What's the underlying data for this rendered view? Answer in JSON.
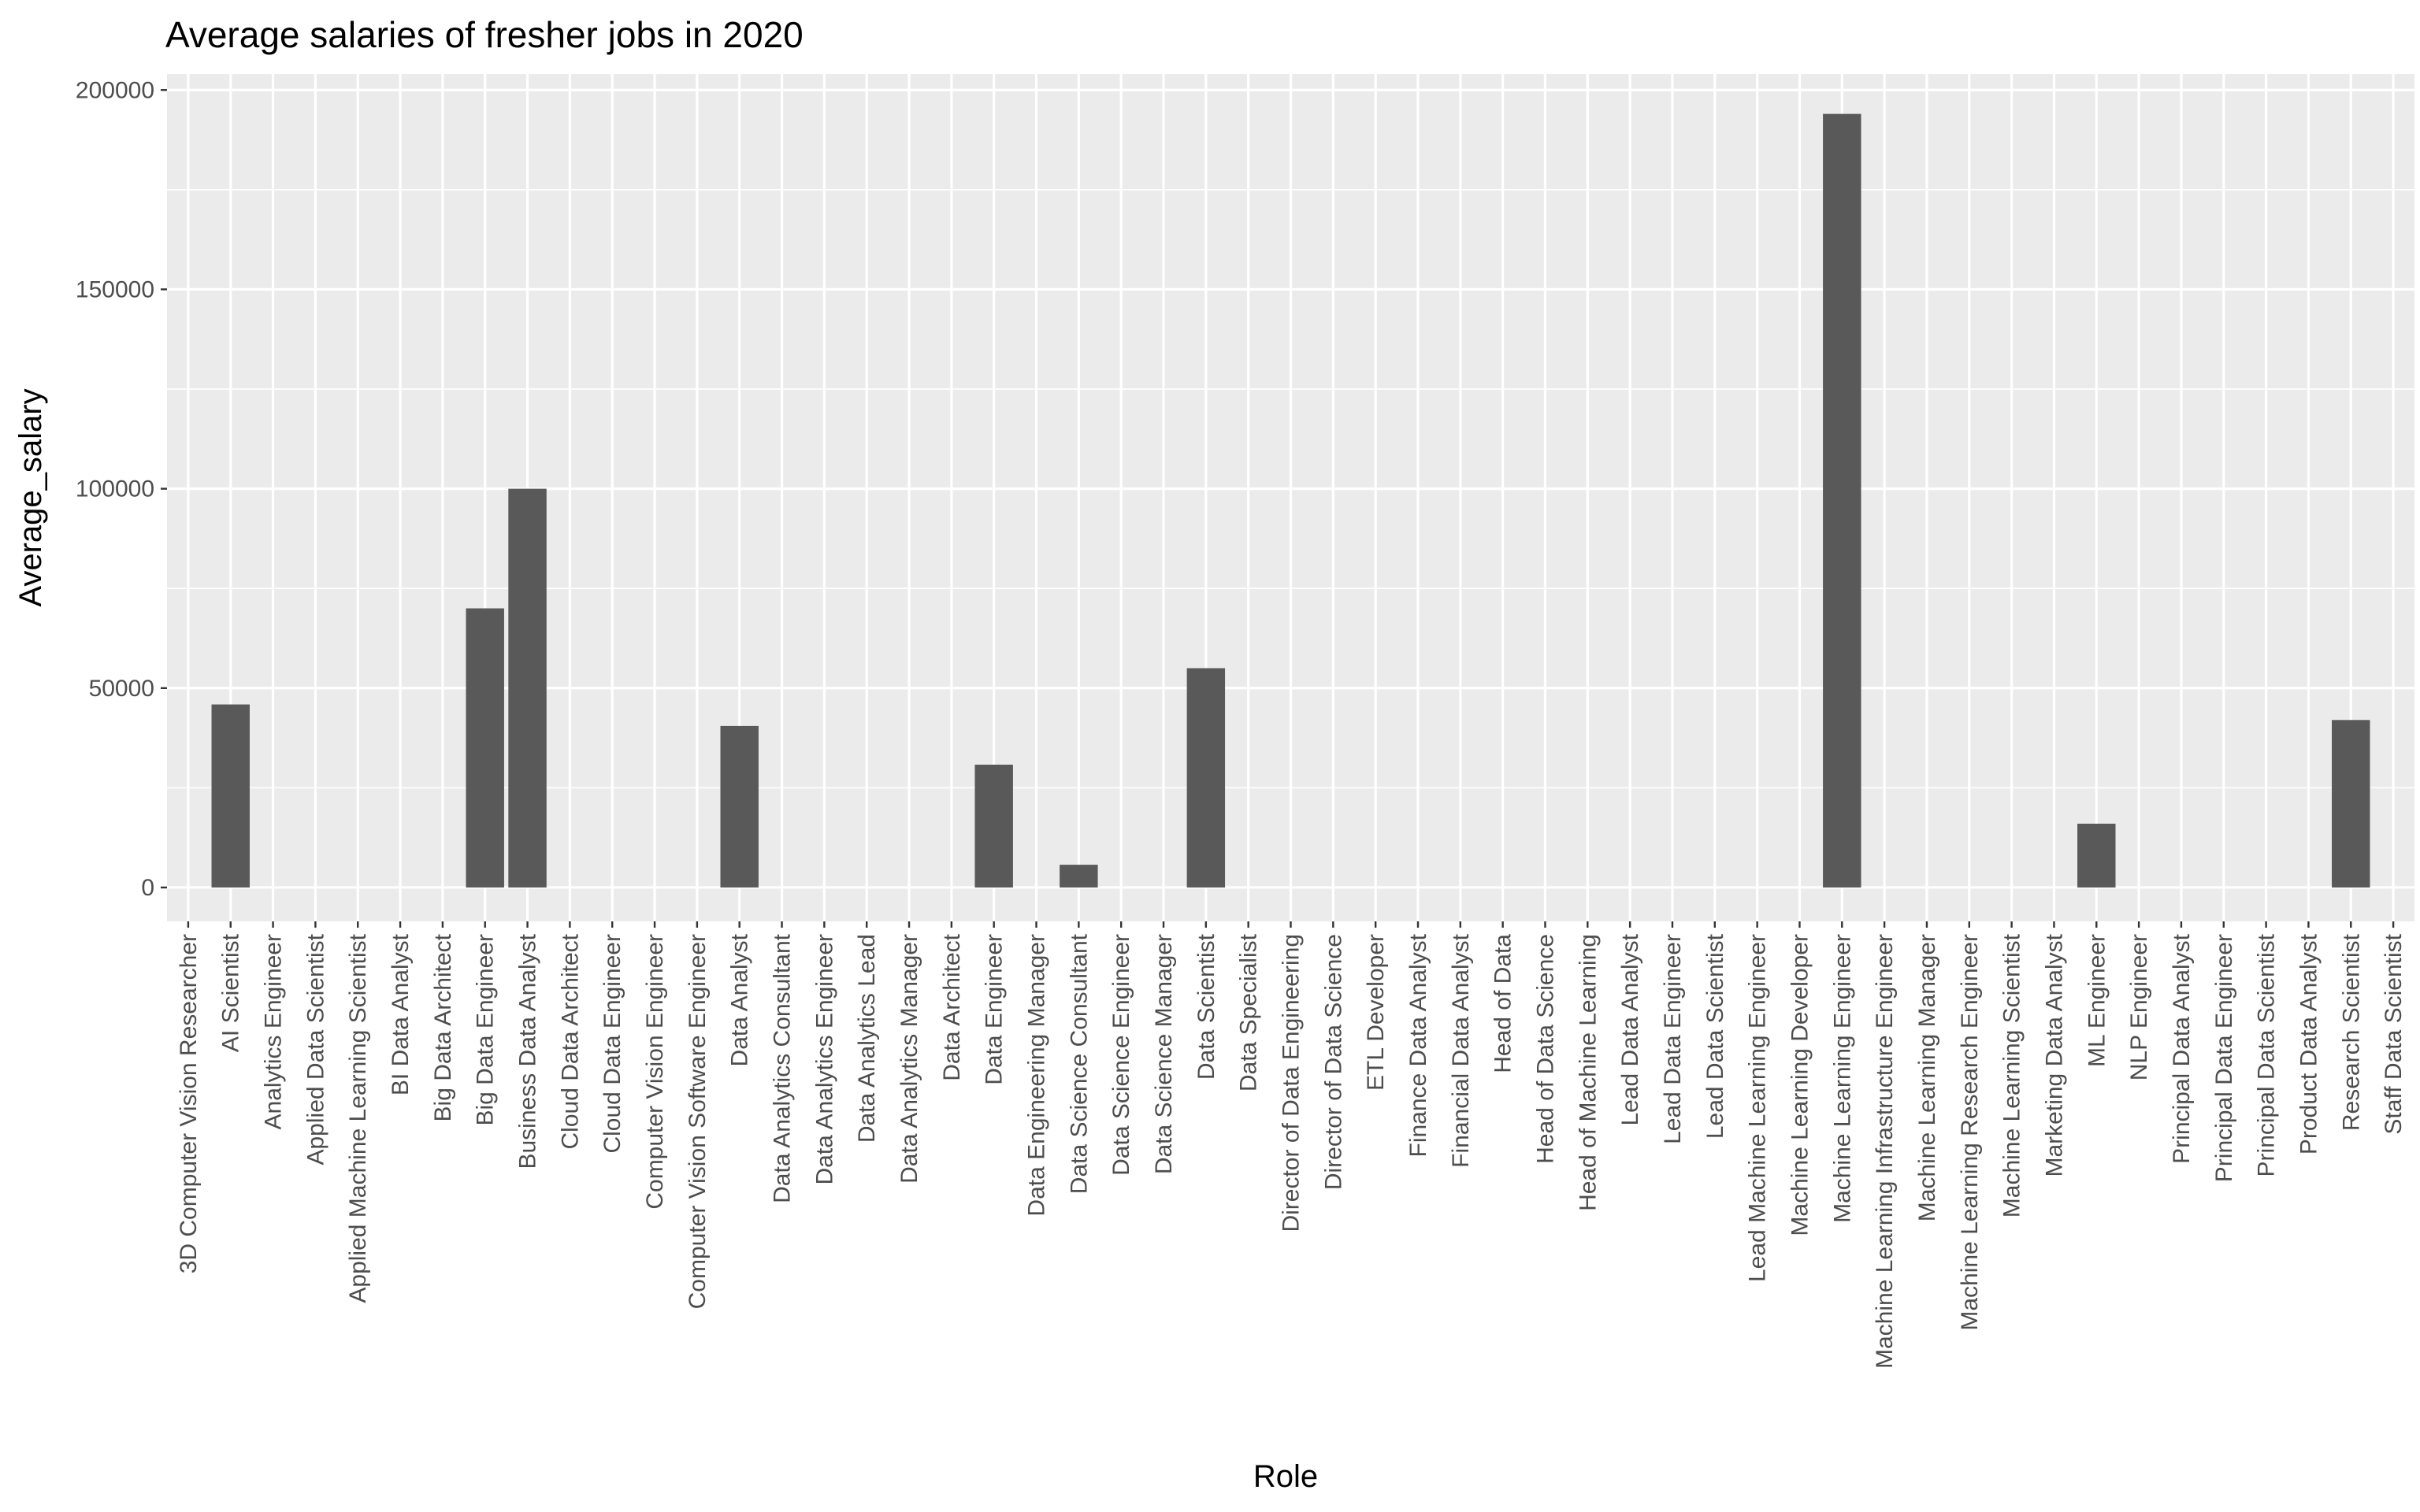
{
  "chart_data": {
    "type": "bar",
    "title": "Average salaries of fresher jobs in 2020",
    "xlabel": "Role",
    "ylabel": "Average_salary",
    "ylim": [
      -8500,
      204000
    ],
    "yticks": [
      0,
      50000,
      100000,
      150000,
      200000
    ],
    "grid": true,
    "legend": "none",
    "colors": {
      "bar": "#595959",
      "panel": "#ebebeb",
      "grid": "#ffffff",
      "tick": "#333333"
    },
    "categories": [
      "3D Computer Vision Researcher",
      "AI Scientist",
      "Analytics Engineer",
      "Applied Data Scientist",
      "Applied Machine Learning Scientist",
      "BI Data Analyst",
      "Big Data Architect",
      "Big Data Engineer",
      "Business Data Analyst",
      "Cloud Data Architect",
      "Cloud Data Engineer",
      "Computer Vision Engineer",
      "Computer Vision Software Engineer",
      "Data Analyst",
      "Data Analytics Consultant",
      "Data Analytics Engineer",
      "Data Analytics Lead",
      "Data Analytics Manager",
      "Data Architect",
      "Data Engineer",
      "Data Engineering Manager",
      "Data Science Consultant",
      "Data Science Engineer",
      "Data Science Manager",
      "Data Scientist",
      "Data Specialist",
      "Director of Data Engineering",
      "Director of Data Science",
      "ETL Developer",
      "Finance Data Analyst",
      "Financial Data Analyst",
      "Head of Data",
      "Head of Data Science",
      "Head of Machine Learning",
      "Lead Data Analyst",
      "Lead Data Engineer",
      "Lead Data Scientist",
      "Lead Machine Learning Engineer",
      "Machine Learning Developer",
      "Machine Learning Engineer",
      "Machine Learning Infrastructure Engineer",
      "Machine Learning Manager",
      "Machine Learning Research Engineer",
      "Machine Learning Scientist",
      "Marketing Data Analyst",
      "ML Engineer",
      "NLP Engineer",
      "Principal Data Analyst",
      "Principal Data Engineer",
      "Principal Data Scientist",
      "Product Data Analyst",
      "Research Scientist",
      "Staff Data Scientist"
    ],
    "values": [
      0,
      45900,
      0,
      0,
      0,
      0,
      0,
      70000,
      100000,
      0,
      0,
      0,
      0,
      40500,
      0,
      0,
      0,
      0,
      0,
      30800,
      0,
      5700,
      0,
      0,
      55000,
      0,
      0,
      0,
      0,
      0,
      0,
      0,
      0,
      0,
      0,
      0,
      0,
      0,
      0,
      194000,
      0,
      0,
      0,
      0,
      0,
      16000,
      0,
      0,
      0,
      0,
      0,
      42000,
      0
    ]
  }
}
